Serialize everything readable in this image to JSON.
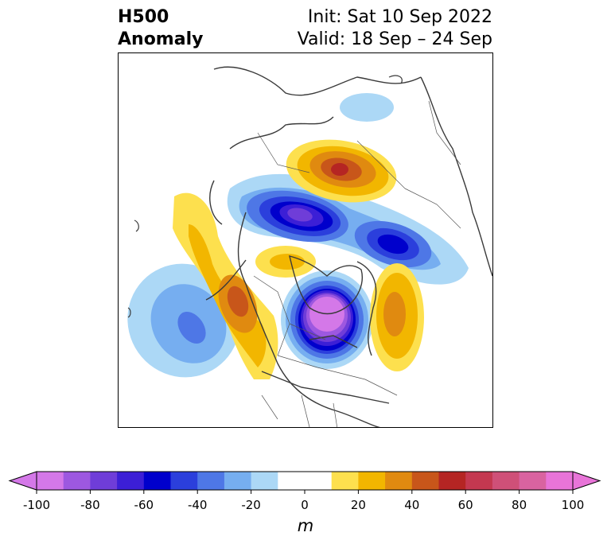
{
  "title": {
    "left_line1": "H500",
    "left_line2": "Anomaly",
    "right_line1": "Init: Sat 10 Sep 2022",
    "right_line2": "Valid: 18 Sep – 24 Sep"
  },
  "colorbar": {
    "unit": "m",
    "tick_labels": [
      "-100",
      "-80",
      "-60",
      "-40",
      "-20",
      "0",
      "20",
      "40",
      "60",
      "80",
      "100"
    ],
    "ticks": [
      -100,
      -80,
      -60,
      -40,
      -20,
      0,
      20,
      40,
      60,
      80,
      100
    ],
    "levels": [
      -100,
      -90,
      -80,
      -70,
      -60,
      -50,
      -40,
      -30,
      -20,
      -10,
      10,
      20,
      30,
      40,
      50,
      60,
      70,
      80,
      90,
      100
    ],
    "colors": [
      "#d478e8",
      "#9d58e0",
      "#6f3dd8",
      "#3c1fd6",
      "#0000cc",
      "#2b3fdc",
      "#4e77e6",
      "#76aef0",
      "#acd8f6",
      "#ffffff",
      "#fde04e",
      "#f2b600",
      "#e08a10",
      "#c8561a",
      "#b52523",
      "#c43850",
      "#cf5078",
      "#d963a0",
      "#e874d8"
    ],
    "extend": "both"
  },
  "map": {
    "projection": "north-polar-stereographic",
    "region": "North America and Arctic",
    "anomalies": [
      {
        "sign": "positive",
        "peak_m": 60,
        "location": "central Siberia"
      },
      {
        "sign": "negative",
        "peak_m": -80,
        "location": "Arctic Ocean / Beaufort"
      },
      {
        "sign": "negative",
        "peak_m": -60,
        "location": "Kamchatka / Okhotsk"
      },
      {
        "sign": "negative",
        "peak_m": -90,
        "location": "Hudson Bay"
      },
      {
        "sign": "positive",
        "peak_m": 50,
        "location": "Gulf of Alaska / BC coast"
      },
      {
        "sign": "negative",
        "peak_m": -40,
        "location": "North Pacific"
      },
      {
        "sign": "positive",
        "peak_m": 40,
        "location": "Labrador Sea / Atlantic"
      }
    ]
  }
}
